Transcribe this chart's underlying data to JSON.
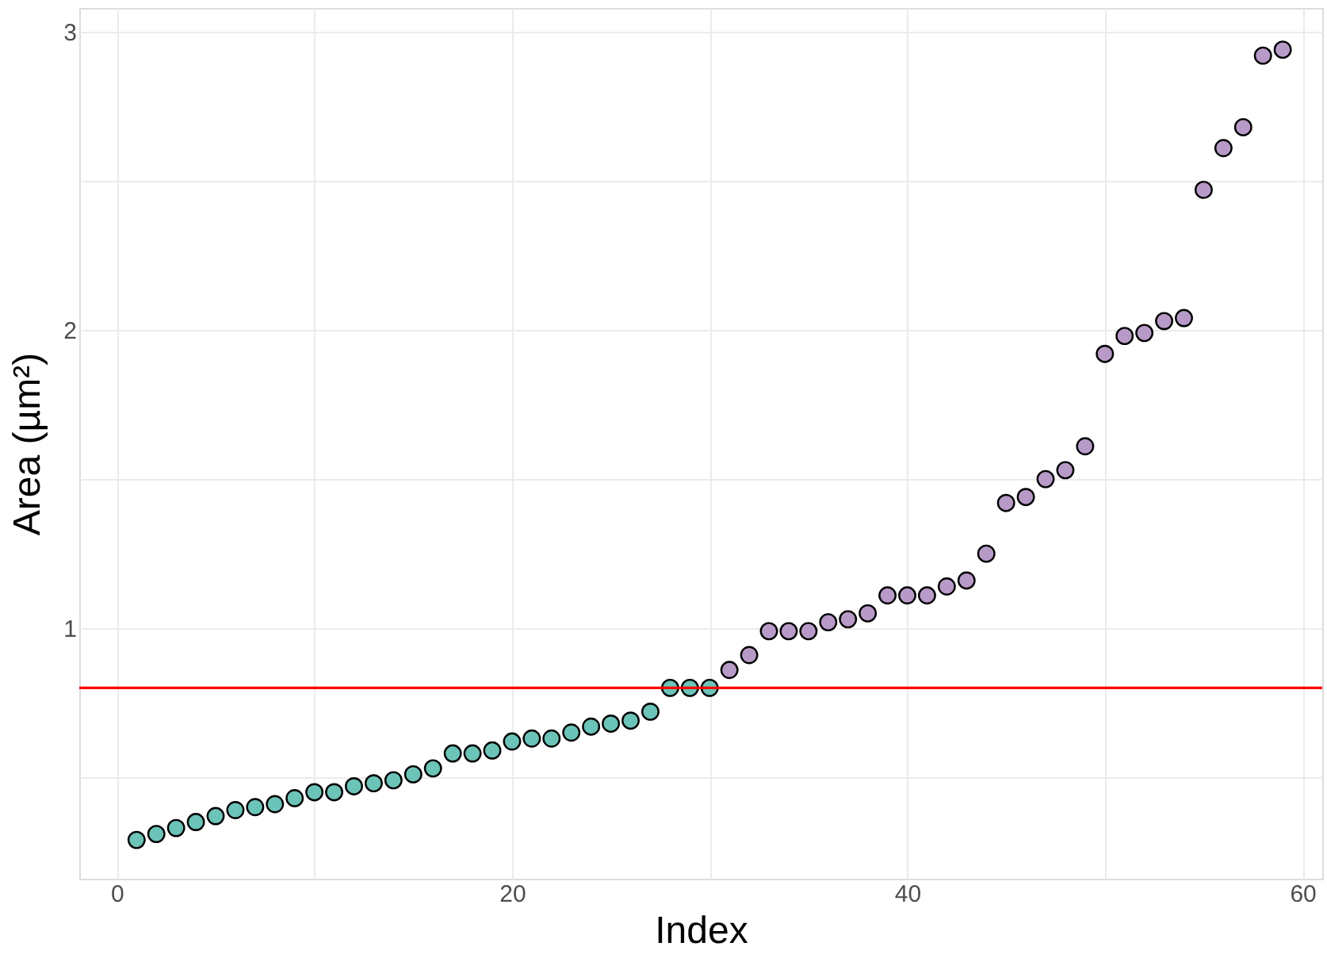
{
  "chart_data": {
    "type": "scatter",
    "xlabel": "Index",
    "ylabel": "Area (µm²)",
    "xlim": [
      -1.9,
      61
    ],
    "ylim": [
      0.16,
      3.08
    ],
    "xticks": [
      0,
      {
        "value": 10,
        "label": null
      },
      20,
      {
        "value": 30,
        "label": null
      },
      40,
      {
        "value": 50,
        "label": null
      },
      60
    ],
    "yticks": [
      {
        "value": 0.5,
        "label": null
      },
      1,
      {
        "value": 1.5,
        "label": null
      },
      2,
      {
        "value": 2.5,
        "label": null
      },
      3
    ],
    "grid": true,
    "marker": "circle",
    "ref_lines": [
      {
        "axis": "y",
        "value": 0.8,
        "color": "#ff0000"
      }
    ],
    "series": [
      {
        "color": "#6cc3b8",
        "x": [
          1,
          2,
          3,
          4,
          5,
          6,
          7,
          8,
          9,
          10,
          11,
          12,
          13,
          14,
          15,
          16,
          17,
          18,
          19,
          20,
          21,
          22,
          23,
          24,
          25,
          26,
          27,
          28,
          29,
          30
        ],
        "values": [
          0.29,
          0.31,
          0.33,
          0.35,
          0.37,
          0.39,
          0.4,
          0.41,
          0.43,
          0.45,
          0.45,
          0.47,
          0.48,
          0.49,
          0.51,
          0.53,
          0.58,
          0.58,
          0.59,
          0.62,
          0.63,
          0.63,
          0.65,
          0.67,
          0.68,
          0.69,
          0.72,
          0.8,
          0.8,
          0.8
        ]
      },
      {
        "color": "#b89ac8",
        "x": [
          31,
          32,
          33,
          34,
          35,
          36,
          37,
          38,
          39,
          40,
          41,
          42,
          43,
          44,
          45,
          46,
          47,
          48,
          49,
          50,
          51,
          52,
          53,
          54,
          55,
          56,
          57,
          58,
          59
        ],
        "values": [
          0.86,
          0.91,
          0.99,
          0.99,
          0.99,
          1.02,
          1.03,
          1.05,
          1.11,
          1.11,
          1.11,
          1.14,
          1.16,
          1.25,
          1.42,
          1.44,
          1.5,
          1.53,
          1.61,
          1.92,
          1.98,
          1.99,
          2.03,
          2.04,
          2.47,
          2.61,
          2.68,
          2.92,
          2.94
        ]
      }
    ]
  }
}
